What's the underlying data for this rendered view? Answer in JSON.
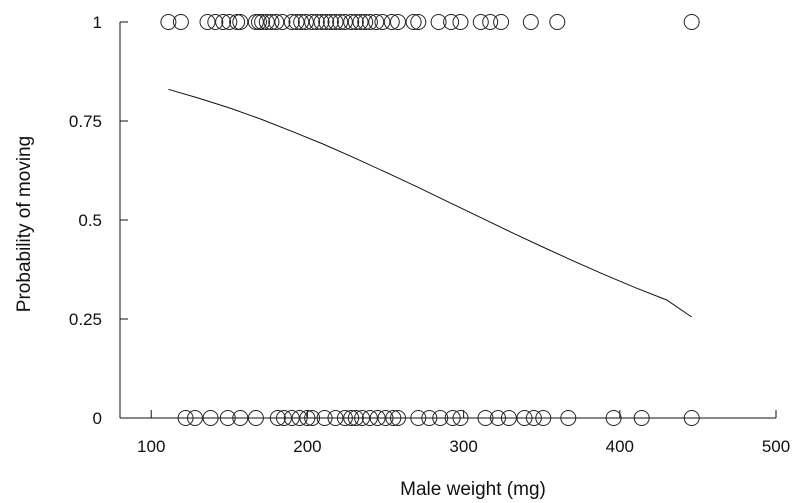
{
  "chart_data": {
    "type": "scatter",
    "xlabel": "Male weight (mg)",
    "ylabel": "Probability of moving",
    "xlim": [
      80,
      500
    ],
    "ylim": [
      0,
      1
    ],
    "xticks": [
      100,
      200,
      300,
      400,
      500
    ],
    "xtick_labels": [
      "100",
      "200",
      "300",
      "400",
      "500"
    ],
    "yticks": [
      0,
      0.25,
      0.5,
      0.75,
      1
    ],
    "ytick_labels": [
      "0",
      "0.25",
      "0.5",
      "0.75",
      "1"
    ],
    "grid": false,
    "series": [
      {
        "type": "scatter",
        "y": 1,
        "x": [
          111,
          119,
          136,
          141,
          146,
          150,
          155,
          157,
          167,
          169,
          171,
          174,
          177,
          180,
          184,
          190,
          193,
          196,
          199,
          203,
          206,
          209,
          212,
          215,
          218,
          221,
          224,
          228,
          231,
          234,
          237,
          240,
          244,
          248,
          254,
          258,
          268,
          271,
          284,
          292,
          298,
          311,
          317,
          324,
          343,
          360,
          446
        ]
      },
      {
        "type": "scatter",
        "y": 0,
        "x": [
          122,
          128,
          138,
          149,
          157,
          167,
          181,
          185,
          190,
          195,
          200,
          203,
          211,
          218,
          224,
          228,
          231,
          235,
          240,
          245,
          250,
          255,
          258,
          271,
          278,
          285,
          293,
          298,
          314,
          322,
          329,
          339,
          345,
          351,
          367,
          396,
          414,
          446
        ]
      },
      {
        "type": "line",
        "name": "",
        "x": [
          111,
          130,
          150,
          170,
          190,
          210,
          230,
          250,
          270,
          290,
          310,
          330,
          350,
          370,
          390,
          410,
          430,
          446
        ],
        "y": [
          0.83,
          0.808,
          0.783,
          0.755,
          0.724,
          0.692,
          0.657,
          0.621,
          0.584,
          0.546,
          0.508,
          0.47,
          0.433,
          0.397,
          0.362,
          0.329,
          0.298,
          0.255
        ]
      }
    ]
  }
}
